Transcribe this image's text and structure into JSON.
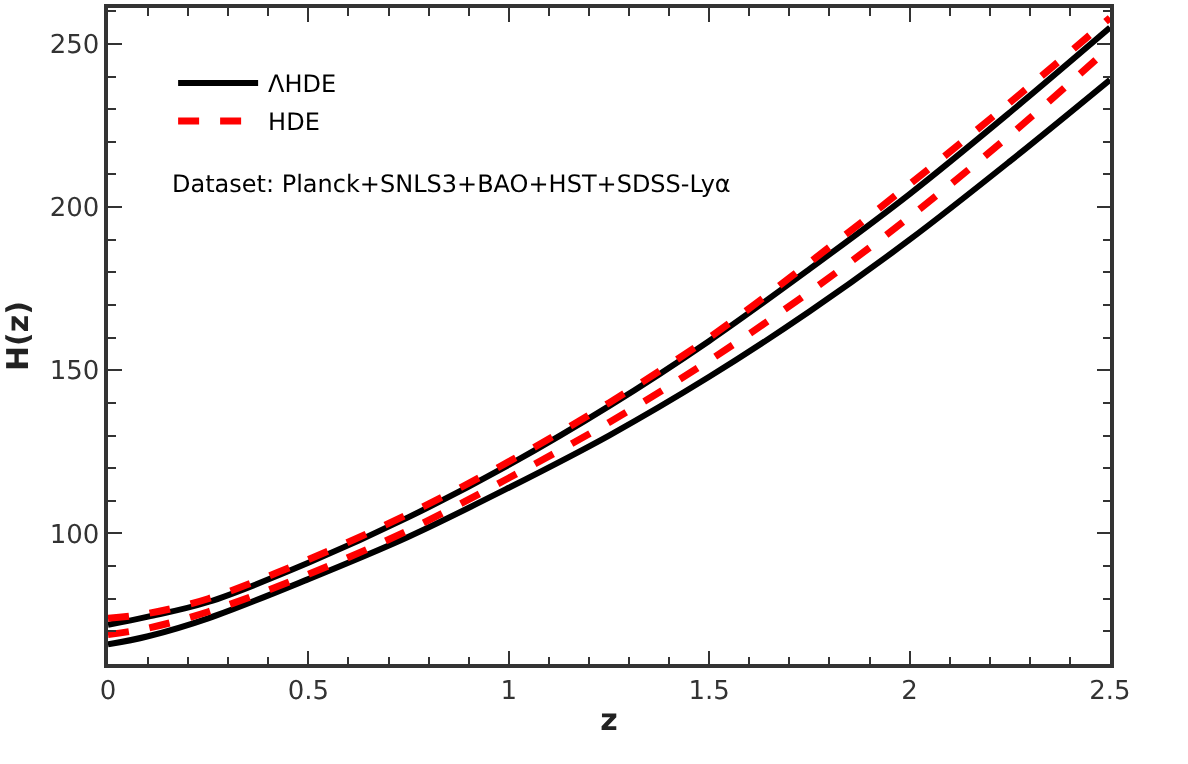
{
  "chart_data": {
    "type": "line",
    "xlabel": "z",
    "ylabel": "H(z)",
    "x": [
      0,
      0.1,
      0.25,
      0.5,
      0.75,
      1,
      1.25,
      1.5,
      1.75,
      2,
      2.25,
      2.5
    ],
    "series": [
      {
        "name": "ΛHDE",
        "color": "#000000",
        "line_style": "solid",
        "values": [
          72,
          74.5,
          79,
          91,
          105,
          121,
          139,
          159,
          181,
          204,
          229,
          255
        ]
      },
      {
        "color": "#000000",
        "line_style": "solid",
        "values": [
          66,
          68.5,
          74,
          86,
          99,
          114,
          130,
          148,
          168,
          190,
          214,
          239
        ]
      },
      {
        "name": "HDE",
        "color": "#ff0000",
        "line_style": "dashed",
        "values": [
          74,
          75.5,
          80,
          92,
          106,
          122,
          140,
          160,
          183,
          207,
          232,
          258
        ]
      },
      {
        "color": "#ff0000",
        "line_style": "dashed",
        "values": [
          69,
          71,
          76,
          87.5,
          101,
          117,
          134,
          153,
          174,
          197,
          222,
          249
        ]
      }
    ],
    "annotations": [
      "Dataset: Planck+SNLS3+BAO+HST+SDSS-Lyα"
    ],
    "xlim": [
      0,
      2.5
    ],
    "ylim": [
      60,
      261
    ],
    "xticks": [
      0,
      0.5,
      1,
      1.5,
      2,
      2.5
    ],
    "yticks": [
      100,
      150,
      200,
      250
    ],
    "legend": "top left",
    "marker": "none"
  }
}
